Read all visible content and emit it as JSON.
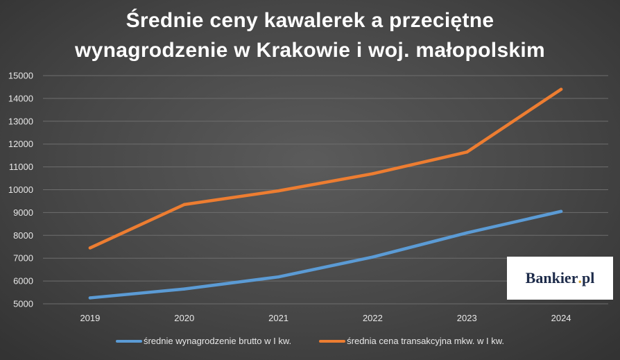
{
  "chart_data": {
    "type": "line",
    "title_lines": [
      "Średnie ceny kawalerek a przeciętne",
      "wynagrodzenie w Krakowie i woj. małopolskim"
    ],
    "categories": [
      "2019",
      "2020",
      "2021",
      "2022",
      "2023",
      "2024"
    ],
    "y_ticks": [
      "5000",
      "6000",
      "7000",
      "8000",
      "9000",
      "10000",
      "11000",
      "12000",
      "13000",
      "14000",
      "15000"
    ],
    "ylim": [
      5000,
      15000
    ],
    "grid": true,
    "legend_position": "bottom",
    "series": [
      {
        "name": "średnie wynagrodzenie brutto w I kw.",
        "color": "#5b9bd5",
        "values": [
          5260,
          5650,
          6180,
          7050,
          8110,
          9050
        ]
      },
      {
        "name": "średnia cena transakcyjna mkw. w I kw.",
        "color": "#ed7d31",
        "values": [
          7450,
          9350,
          9950,
          10700,
          11650,
          14400
        ]
      }
    ]
  },
  "logo": {
    "text_main": "Bankier",
    "text_dot": ".",
    "text_suffix": "pl"
  }
}
